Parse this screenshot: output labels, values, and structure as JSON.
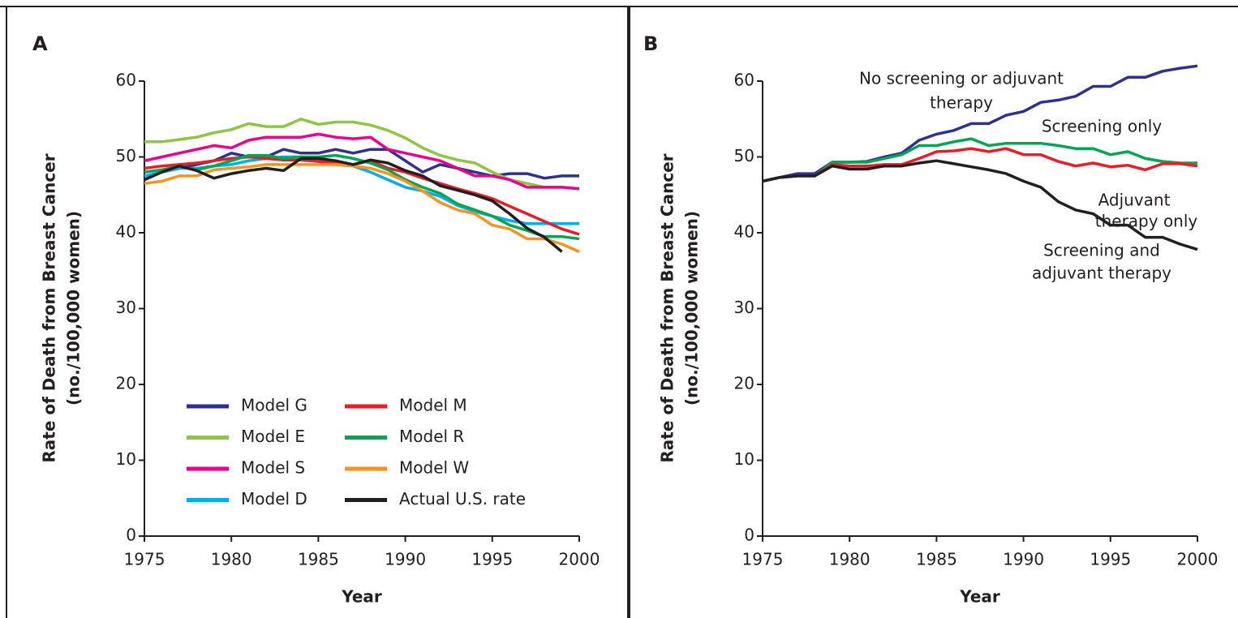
{
  "chart_data": [
    {
      "type": "line",
      "panel_label": "A",
      "xlabel": "Year",
      "ylabel": [
        "Rate of Death from Breast Cancer",
        "(no./100,000 women)"
      ],
      "x": [
        1975,
        1976,
        1977,
        1978,
        1979,
        1980,
        1981,
        1982,
        1983,
        1984,
        1985,
        1986,
        1987,
        1988,
        1989,
        1990,
        1991,
        1992,
        1993,
        1994,
        1995,
        1996,
        1997,
        1998,
        1999,
        2000
      ],
      "xlim": [
        1975,
        2000
      ],
      "xticks": [
        1975,
        1980,
        1985,
        1990,
        1995,
        2000
      ],
      "ylim": [
        0,
        60
      ],
      "yticks": [
        0,
        10,
        20,
        30,
        40,
        50,
        60
      ],
      "series": [
        {
          "name": "Model G",
          "color": "#2e3192",
          "values": [
            47,
            48,
            48.5,
            49,
            49.5,
            50.5,
            50,
            50,
            51,
            50.5,
            50.5,
            51,
            50.5,
            51,
            51,
            49.5,
            48,
            49,
            48.5,
            48,
            47.5,
            47.8,
            47.8,
            47.2,
            47.5,
            47.5
          ]
        },
        {
          "name": "Model E",
          "color": "#8dc63f",
          "values": [
            52,
            52,
            52.3,
            52.6,
            53.2,
            53.6,
            54.4,
            54,
            54,
            55,
            54.3,
            54.6,
            54.6,
            54.2,
            53.5,
            52.5,
            51.2,
            50.2,
            49.6,
            49.2,
            48,
            47,
            46.5,
            46,
            46,
            45.8
          ]
        },
        {
          "name": "Model S",
          "color": "#ec008c",
          "values": [
            49.5,
            50,
            50.5,
            51,
            51.5,
            51.2,
            52.2,
            52.6,
            52.6,
            52.6,
            53,
            52.6,
            52.4,
            52.6,
            51,
            50.5,
            50,
            49.5,
            48.5,
            47.5,
            47.5,
            47,
            46,
            46,
            46,
            45.8
          ]
        },
        {
          "name": "Model D",
          "color": "#00aeef",
          "values": [
            47.5,
            48,
            48.5,
            48.5,
            48.8,
            49,
            49.5,
            49.8,
            50,
            50,
            49.5,
            49,
            48.8,
            48,
            47,
            46,
            45.5,
            44.8,
            43.6,
            42.8,
            42.2,
            41.6,
            41.2,
            41.2,
            41.2,
            41.2
          ]
        },
        {
          "name": "Model M",
          "color": "#ed1c24",
          "values": [
            48.5,
            48.8,
            49,
            49.2,
            49.5,
            49.8,
            50,
            49.8,
            49.6,
            49.6,
            49.4,
            49.2,
            49,
            49.5,
            48.5,
            48,
            47.2,
            46.5,
            45.8,
            45.2,
            44.5,
            43.5,
            42.5,
            41.5,
            40.5,
            39.8
          ]
        },
        {
          "name": "Model R",
          "color": "#00a651",
          "values": [
            48,
            48.3,
            48.8,
            48.3,
            48.8,
            49.5,
            50.2,
            50.2,
            49.8,
            50,
            50,
            50.2,
            49.8,
            49.2,
            48.3,
            47,
            46,
            45.2,
            43.8,
            43,
            42.2,
            41,
            40.3,
            39.5,
            39.5,
            39.2
          ]
        },
        {
          "name": "Model W",
          "color": "#f7941d",
          "values": [
            46.5,
            46.8,
            47.5,
            47.5,
            48.3,
            48.5,
            48.7,
            49,
            49,
            49,
            49,
            49,
            48.8,
            48.5,
            47.8,
            46.8,
            45.5,
            44,
            43,
            42.5,
            41,
            40.5,
            39.2,
            39.2,
            38.5,
            37.5
          ]
        },
        {
          "name": "Actual U.S. rate",
          "color": "#231f20",
          "values": [
            47,
            48,
            48.8,
            48.2,
            47.2,
            47.8,
            48.2,
            48.5,
            48.2,
            49.8,
            49.8,
            49.5,
            49,
            49.6,
            49.2,
            48.2,
            47.5,
            46.2,
            45.6,
            45,
            44.2,
            42.5,
            40.6,
            39.4,
            37.5,
            null
          ]
        }
      ]
    },
    {
      "type": "line",
      "panel_label": "B",
      "xlabel": "Year",
      "ylabel": [
        "Rate of Death from Breast Cancer",
        "(no./100,000 women)"
      ],
      "x": [
        1975,
        1976,
        1977,
        1978,
        1979,
        1980,
        1981,
        1982,
        1983,
        1984,
        1985,
        1986,
        1987,
        1988,
        1989,
        1990,
        1991,
        1992,
        1993,
        1994,
        1995,
        1996,
        1997,
        1998,
        1999,
        2000
      ],
      "xlim": [
        1975,
        2000
      ],
      "xticks": [
        1975,
        1980,
        1985,
        1990,
        1995,
        2000
      ],
      "ylim": [
        0,
        60
      ],
      "yticks": [
        0,
        10,
        20,
        30,
        40,
        50,
        60
      ],
      "annotations": [
        "No screening or adjuvant",
        "therapy",
        "Screening only",
        "Adjuvant",
        "therapy only",
        "Screening and",
        "adjuvant therapy"
      ],
      "series": [
        {
          "color": "#2e3192",
          "values": [
            46.8,
            47.3,
            47.8,
            47.8,
            49.3,
            49.3,
            49.4,
            50,
            50.5,
            52.2,
            53,
            53.5,
            54.4,
            54.4,
            55.5,
            56,
            57.2,
            57.5,
            58,
            59.3,
            59.3,
            60.5,
            60.5,
            61.3,
            61.7,
            62
          ]
        },
        {
          "color": "#00a651",
          "values": [
            46.8,
            47.3,
            47.5,
            47.5,
            49.3,
            49.3,
            49.3,
            49.8,
            50.3,
            51.5,
            51.5,
            52,
            52.4,
            51.5,
            51.8,
            51.8,
            51.8,
            51.5,
            51.1,
            51.1,
            50.3,
            50.7,
            49.8,
            49.4,
            49.2,
            49.2
          ]
        },
        {
          "color": "#ed1c24",
          "values": [
            46.8,
            47.3,
            47.5,
            47.5,
            49,
            48.8,
            48.8,
            49,
            49,
            49.8,
            50.7,
            50.8,
            51.1,
            50.7,
            51.1,
            50.3,
            50.3,
            49.4,
            48.8,
            49.2,
            48.7,
            48.9,
            48.3,
            49.1,
            49.1,
            48.8
          ]
        },
        {
          "color": "#231f20",
          "values": [
            46.8,
            47.3,
            47.5,
            47.5,
            48.8,
            48.4,
            48.4,
            48.8,
            48.8,
            49.2,
            49.5,
            49.1,
            48.7,
            48.3,
            47.8,
            46.8,
            46,
            44.1,
            43,
            42.5,
            41,
            41,
            39.4,
            39.4,
            38.5,
            37.8
          ]
        }
      ]
    }
  ]
}
